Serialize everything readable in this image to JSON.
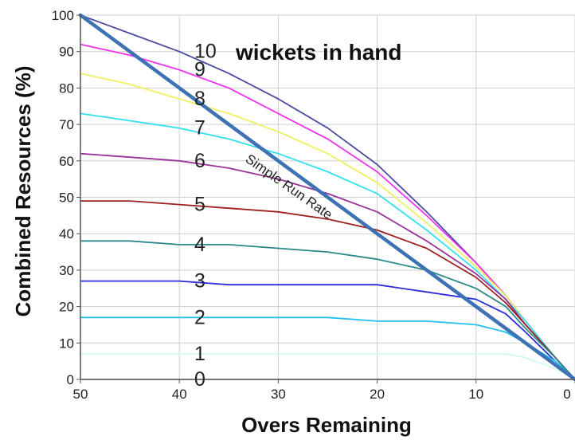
{
  "chart_data": {
    "type": "line",
    "title": "",
    "xlabel": "Overs Remaining",
    "ylabel": "Combined Resources (%)",
    "xlim": [
      50,
      0
    ],
    "ylim": [
      0,
      100
    ],
    "x_ticks": [
      "50",
      "40",
      "30",
      "20",
      "10",
      "0"
    ],
    "y_ticks": [
      "0",
      "10",
      "20",
      "30",
      "40",
      "50",
      "60",
      "70",
      "80",
      "90",
      "100"
    ],
    "grid": true,
    "annotation": "wickets in hand",
    "series": [
      {
        "name": "10",
        "color": "#4b4ba0",
        "x": [
          50,
          45,
          40,
          35,
          30,
          25,
          20,
          15,
          10,
          7,
          5,
          2,
          0
        ],
        "y": [
          100,
          95,
          90,
          84,
          77,
          69,
          59,
          46,
          32,
          23,
          16,
          6,
          0
        ]
      },
      {
        "name": "9",
        "color": "#ee33ee",
        "x": [
          50,
          45,
          40,
          35,
          30,
          25,
          20,
          15,
          10,
          7,
          5,
          2,
          0
        ],
        "y": [
          92,
          89,
          85,
          80,
          73,
          66,
          57,
          45,
          32,
          23,
          16,
          6,
          0
        ]
      },
      {
        "name": "8",
        "color": "#f0f060",
        "x": [
          50,
          45,
          40,
          35,
          30,
          25,
          20,
          15,
          10,
          7,
          5,
          2,
          0
        ],
        "y": [
          84,
          81,
          77,
          73,
          68,
          62,
          54,
          43,
          31,
          23,
          16,
          6,
          0
        ]
      },
      {
        "name": "7",
        "color": "#33e0ee",
        "x": [
          50,
          45,
          40,
          35,
          30,
          25,
          20,
          15,
          10,
          7,
          5,
          2,
          0
        ],
        "y": [
          73,
          71,
          69,
          66,
          62,
          57,
          51,
          41,
          30,
          22,
          16,
          6,
          0
        ]
      },
      {
        "name": "6",
        "color": "#993399",
        "x": [
          50,
          45,
          40,
          35,
          30,
          25,
          20,
          15,
          10,
          7,
          5,
          2,
          0
        ],
        "y": [
          62,
          61,
          60,
          58,
          55,
          51,
          46,
          38,
          29,
          22,
          15,
          6,
          0
        ]
      },
      {
        "name": "5",
        "color": "#a02020",
        "x": [
          50,
          45,
          40,
          35,
          30,
          25,
          20,
          15,
          10,
          7,
          5,
          2,
          0
        ],
        "y": [
          49,
          49,
          48,
          47,
          46,
          44,
          41,
          36,
          28,
          21,
          15,
          6,
          0
        ]
      },
      {
        "name": "4",
        "color": "#2a8a8a",
        "x": [
          50,
          45,
          40,
          35,
          30,
          25,
          20,
          15,
          10,
          7,
          5,
          2,
          0
        ],
        "y": [
          38,
          38,
          37,
          37,
          36,
          35,
          33,
          30,
          25,
          20,
          14,
          6,
          0
        ]
      },
      {
        "name": "3",
        "color": "#2c2cdd",
        "x": [
          50,
          45,
          40,
          35,
          30,
          25,
          20,
          15,
          10,
          7,
          5,
          2,
          0
        ],
        "y": [
          27,
          27,
          27,
          26,
          26,
          26,
          26,
          24,
          22,
          18,
          13,
          5,
          0
        ]
      },
      {
        "name": "2",
        "color": "#22c0ee",
        "x": [
          50,
          45,
          40,
          35,
          30,
          25,
          20,
          15,
          10,
          7,
          5,
          2,
          0
        ],
        "y": [
          17,
          17,
          17,
          17,
          17,
          17,
          16,
          16,
          15,
          13,
          10,
          5,
          0
        ]
      },
      {
        "name": "1",
        "color": "#d2f6f6",
        "x": [
          50,
          45,
          40,
          35,
          30,
          25,
          20,
          15,
          10,
          7,
          5,
          2,
          0
        ],
        "y": [
          7,
          7,
          7,
          7,
          7,
          7,
          7,
          7,
          7,
          7,
          6,
          3,
          0
        ]
      },
      {
        "name": "0",
        "color": "#cccccc",
        "x": [
          50,
          0
        ],
        "y": [
          0,
          0
        ]
      }
    ],
    "reference_line": {
      "name": "Simple Run Rate",
      "color": "#3d72b4",
      "x": [
        50,
        0
      ],
      "y": [
        100,
        0
      ]
    }
  }
}
